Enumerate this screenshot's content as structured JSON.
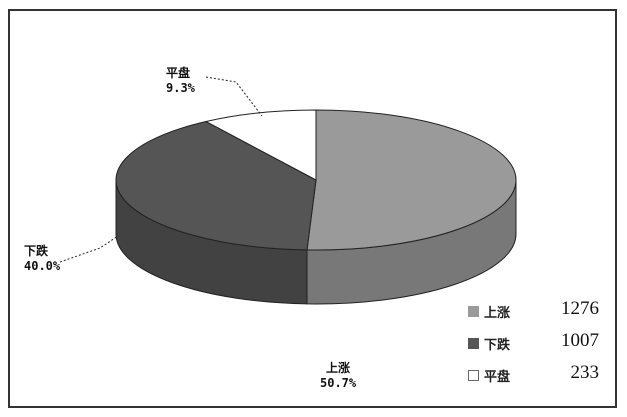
{
  "chart_data": {
    "type": "pie",
    "title": "",
    "slices": [
      {
        "name": "上涨",
        "value": 1276,
        "percent_label": "50.7%",
        "color": "#9a9a9a"
      },
      {
        "name": "下跌",
        "value": 1007,
        "percent_label": "40.0%",
        "color": "#555555"
      },
      {
        "name": "平盘",
        "value": 233,
        "percent_label": "9.3%",
        "color": "#ffffff"
      }
    ],
    "legend_position": "bottom-right",
    "style": "3d"
  },
  "legend": {
    "items": [
      {
        "name": "上涨",
        "value": "1276"
      },
      {
        "name": "下跌",
        "value": "1007"
      },
      {
        "name": "平盘",
        "value": "233"
      }
    ]
  }
}
